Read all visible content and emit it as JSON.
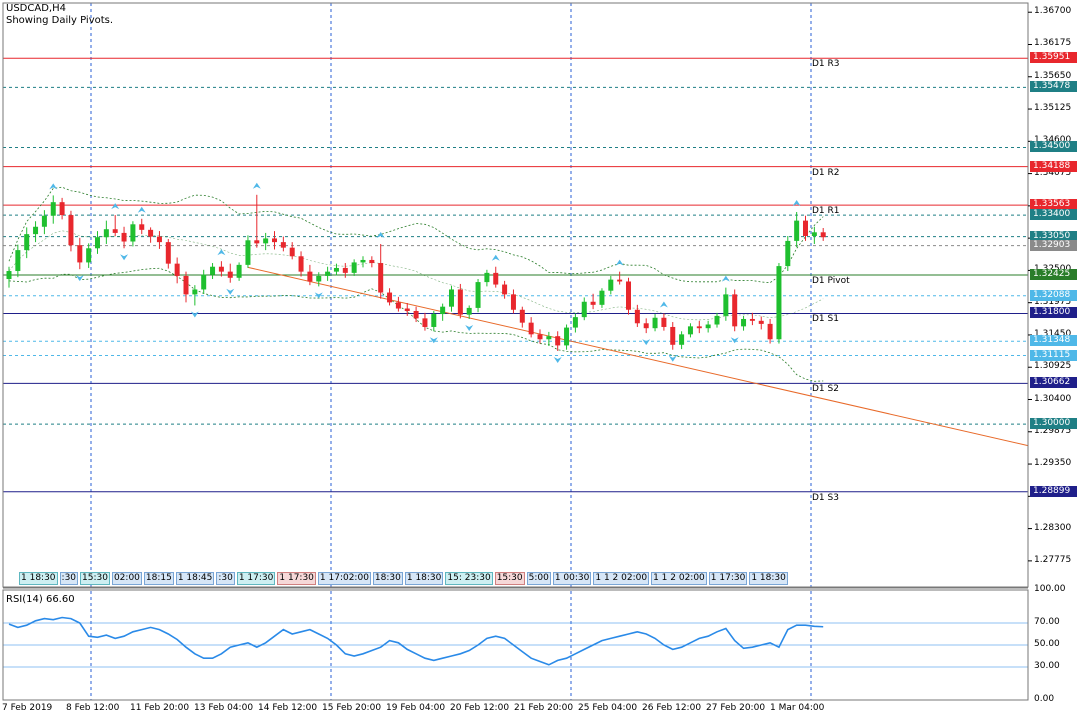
{
  "header": {
    "symbol": "USDCAD,H4",
    "subtitle": "Showing Daily Pivots."
  },
  "colors": {
    "bull": "#1fbf2f",
    "bear": "#e8272d",
    "pivot_red": "#e8272d",
    "pivot_blue": "#1f1f8a",
    "pivot_green": "#2a7d2a",
    "level_teal": "#1f7f85",
    "band": "#2a7d2a",
    "trend": "#e86a2a",
    "rsi": "#2a8ae8",
    "grid": "#2a5fd6"
  },
  "chart_data": [
    {
      "type": "candlestick",
      "title": "USDCAD,H4",
      "y_range": [
        1.2735,
        1.3685
      ],
      "y_ticks": [
        "1.36700",
        "1.36175",
        "1.35650",
        "1.35125",
        "1.34600",
        "1.34075",
        "1.33550",
        "1.33025",
        "1.32500",
        "1.31975",
        "1.31450",
        "1.30925",
        "1.30400",
        "1.29875",
        "1.29350",
        "1.28825",
        "1.28300",
        "1.27775"
      ],
      "x_labels": [
        "7 Feb 2019",
        "8 Feb 12:00",
        "11 Feb 20:00",
        "13 Feb 04:00",
        "14 Feb 12:00",
        "15 Feb 20:00",
        "19 Feb 04:00",
        "20 Feb 12:00",
        "21 Feb 20:00",
        "25 Feb 04:00",
        "26 Feb 12:00",
        "27 Feb 20:00",
        "1 Mar 04:00"
      ],
      "ohlc": [
        [
          1.3236,
          1.3256,
          1.3222,
          1.3249
        ],
        [
          1.3249,
          1.3292,
          1.3239,
          1.3283
        ],
        [
          1.3283,
          1.332,
          1.327,
          1.3309
        ],
        [
          1.3309,
          1.333,
          1.3296,
          1.3321
        ],
        [
          1.3321,
          1.3348,
          1.3309,
          1.3339
        ],
        [
          1.3339,
          1.3372,
          1.3326,
          1.3361
        ],
        [
          1.3361,
          1.3368,
          1.3333,
          1.334
        ],
        [
          1.334,
          1.3347,
          1.3281,
          1.3291
        ],
        [
          1.3291,
          1.3303,
          1.3252,
          1.3263
        ],
        [
          1.3263,
          1.3294,
          1.3254,
          1.3286
        ],
        [
          1.3286,
          1.3314,
          1.3277,
          1.3304
        ],
        [
          1.3304,
          1.3331,
          1.3293,
          1.3317
        ],
        [
          1.3317,
          1.334,
          1.3306,
          1.3311
        ],
        [
          1.3311,
          1.3321,
          1.3286,
          1.3297
        ],
        [
          1.3297,
          1.333,
          1.3289,
          1.3325
        ],
        [
          1.3325,
          1.3334,
          1.3309,
          1.3316
        ],
        [
          1.3316,
          1.332,
          1.3295,
          1.3305
        ],
        [
          1.3305,
          1.3314,
          1.3285,
          1.3296
        ],
        [
          1.3296,
          1.3301,
          1.3253,
          1.3261
        ],
        [
          1.3261,
          1.3271,
          1.3229,
          1.3241
        ],
        [
          1.3241,
          1.3248,
          1.3198,
          1.3211
        ],
        [
          1.3211,
          1.3226,
          1.3193,
          1.3219
        ],
        [
          1.3219,
          1.3251,
          1.3212,
          1.3243
        ],
        [
          1.3243,
          1.3262,
          1.3236,
          1.3256
        ],
        [
          1.3256,
          1.3265,
          1.324,
          1.3248
        ],
        [
          1.3248,
          1.3261,
          1.323,
          1.3238
        ],
        [
          1.3238,
          1.3263,
          1.3233,
          1.3259
        ],
        [
          1.3259,
          1.3307,
          1.3254,
          1.3299
        ],
        [
          1.3299,
          1.3373,
          1.3287,
          1.3294
        ],
        [
          1.3294,
          1.3311,
          1.3283,
          1.3302
        ],
        [
          1.3302,
          1.3314,
          1.3284,
          1.3296
        ],
        [
          1.3296,
          1.3305,
          1.3281,
          1.3287
        ],
        [
          1.3287,
          1.3296,
          1.3268,
          1.3273
        ],
        [
          1.3273,
          1.3281,
          1.324,
          1.3248
        ],
        [
          1.3248,
          1.3259,
          1.3226,
          1.3232
        ],
        [
          1.3232,
          1.3247,
          1.3224,
          1.3241
        ],
        [
          1.3241,
          1.3256,
          1.3233,
          1.3248
        ],
        [
          1.3248,
          1.3261,
          1.3242,
          1.3254
        ],
        [
          1.3254,
          1.3262,
          1.3238,
          1.3246
        ],
        [
          1.3246,
          1.3268,
          1.3241,
          1.3263
        ],
        [
          1.3263,
          1.3273,
          1.3255,
          1.3267
        ],
        [
          1.3267,
          1.3273,
          1.3255,
          1.3262
        ],
        [
          1.3262,
          1.3293,
          1.3204,
          1.3214
        ],
        [
          1.3214,
          1.3221,
          1.3193,
          1.3198
        ],
        [
          1.3198,
          1.3207,
          1.3183,
          1.3188
        ],
        [
          1.3188,
          1.3197,
          1.3176,
          1.3184
        ],
        [
          1.3184,
          1.3191,
          1.3166,
          1.3172
        ],
        [
          1.3172,
          1.3181,
          1.3152,
          1.3158
        ],
        [
          1.3158,
          1.3184,
          1.3151,
          1.3179
        ],
        [
          1.3179,
          1.3196,
          1.3168,
          1.3191
        ],
        [
          1.3191,
          1.3225,
          1.3183,
          1.3219
        ],
        [
          1.3219,
          1.3228,
          1.3172,
          1.3178
        ],
        [
          1.3178,
          1.3193,
          1.3171,
          1.3189
        ],
        [
          1.3189,
          1.3236,
          1.3182,
          1.3231
        ],
        [
          1.3231,
          1.3251,
          1.3224,
          1.3246
        ],
        [
          1.3246,
          1.3256,
          1.3222,
          1.3227
        ],
        [
          1.3227,
          1.3233,
          1.3204,
          1.3211
        ],
        [
          1.3211,
          1.3219,
          1.318,
          1.3186
        ],
        [
          1.3186,
          1.3191,
          1.3157,
          1.3165
        ],
        [
          1.3165,
          1.3174,
          1.3141,
          1.3146
        ],
        [
          1.3146,
          1.3154,
          1.3131,
          1.3138
        ],
        [
          1.3138,
          1.315,
          1.3127,
          1.3143
        ],
        [
          1.3143,
          1.3151,
          1.3119,
          1.3128
        ],
        [
          1.3128,
          1.3162,
          1.3121,
          1.3157
        ],
        [
          1.3157,
          1.318,
          1.3149,
          1.3174
        ],
        [
          1.3174,
          1.3206,
          1.3169,
          1.3199
        ],
        [
          1.3199,
          1.3212,
          1.3187,
          1.3194
        ],
        [
          1.3194,
          1.3221,
          1.3189,
          1.3217
        ],
        [
          1.3217,
          1.3241,
          1.3211,
          1.3235
        ],
        [
          1.3235,
          1.3248,
          1.3227,
          1.3232
        ],
        [
          1.3232,
          1.3238,
          1.3178,
          1.3186
        ],
        [
          1.3186,
          1.3194,
          1.3158,
          1.3164
        ],
        [
          1.3164,
          1.3172,
          1.3148,
          1.3156
        ],
        [
          1.3156,
          1.3179,
          1.3151,
          1.3173
        ],
        [
          1.3173,
          1.318,
          1.3152,
          1.3158
        ],
        [
          1.3158,
          1.3166,
          1.3121,
          1.3129
        ],
        [
          1.3129,
          1.3151,
          1.3122,
          1.3146
        ],
        [
          1.3146,
          1.3164,
          1.3141,
          1.3159
        ],
        [
          1.3159,
          1.3168,
          1.3148,
          1.3156
        ],
        [
          1.3156,
          1.3168,
          1.3149,
          1.3162
        ],
        [
          1.3162,
          1.3181,
          1.3157,
          1.3176
        ],
        [
          1.3176,
          1.3222,
          1.3168,
          1.3211
        ],
        [
          1.3211,
          1.3219,
          1.3151,
          1.3159
        ],
        [
          1.3159,
          1.3176,
          1.3152,
          1.3171
        ],
        [
          1.3171,
          1.3181,
          1.3161,
          1.3168
        ],
        [
          1.3168,
          1.3175,
          1.3154,
          1.3163
        ],
        [
          1.3163,
          1.3171,
          1.3131,
          1.3138
        ],
        [
          1.3138,
          1.3262,
          1.3131,
          1.3257
        ],
        [
          1.3257,
          1.3306,
          1.3249,
          1.3298
        ],
        [
          1.3298,
          1.3345,
          1.3288,
          1.3331
        ],
        [
          1.3331,
          1.3339,
          1.3298,
          1.3306
        ],
        [
          1.3306,
          1.3321,
          1.3293,
          1.3312
        ],
        [
          1.3312,
          1.3319,
          1.3298,
          1.3304
        ]
      ],
      "pivots": [
        {
          "name": "D1 R3",
          "value": 1.35951,
          "label": "1.35951",
          "style": "red"
        },
        {
          "name": "D1 R2",
          "value": 1.34188,
          "label": "1.34188",
          "style": "red"
        },
        {
          "name": "D1 R1",
          "value": 1.33563,
          "label": "1.33563",
          "style": "red"
        },
        {
          "name": "D1 Pivot",
          "value": 1.32425,
          "label": "1.32425",
          "style": "green"
        },
        {
          "name": "D1 S1",
          "value": 1.318,
          "label": "1.31800",
          "style": "blue"
        },
        {
          "name": "D1 S2",
          "value": 1.30662,
          "label": "1.30662",
          "style": "blue"
        },
        {
          "name": "D1 S3",
          "value": 1.28899,
          "label": "1.28899",
          "style": "blue"
        }
      ],
      "levels": [
        {
          "value": 1.35478,
          "label": "1.35478",
          "fill": "#1f7f85"
        },
        {
          "value": 1.345,
          "label": "1.34500",
          "fill": "#1f7f85"
        },
        {
          "value": 1.334,
          "label": "1.33400",
          "fill": "#1f7f85"
        },
        {
          "value": 1.3305,
          "label": "1.33050",
          "fill": "#1f7f85"
        },
        {
          "value": 1.32903,
          "label": "1.32903",
          "fill": "#8a8a8a"
        },
        {
          "value": 1.32088,
          "label": "1.32088",
          "fill": "#4fb8e8"
        },
        {
          "value": 1.31348,
          "label": "1.31348",
          "fill": "#4fb8e8"
        },
        {
          "value": 1.31115,
          "label": "1.31115",
          "fill": "#4fb8e8"
        },
        {
          "value": 1.3,
          "label": "1.30000",
          "fill": "#1f7f85"
        }
      ]
    },
    {
      "type": "line",
      "title": "RSI(14) 66.60",
      "y_range": [
        0,
        100
      ],
      "y_ticks": [
        "100.00",
        "70.00",
        "50.00",
        "30.00",
        "0.00"
      ],
      "levels": [
        70,
        50,
        30
      ],
      "values": [
        69,
        66,
        68,
        72,
        74,
        73,
        75,
        74,
        70,
        58,
        57,
        59,
        56,
        58,
        62,
        64,
        66,
        64,
        60,
        55,
        48,
        42,
        38,
        38,
        42,
        48,
        50,
        52,
        48,
        52,
        58,
        64,
        60,
        62,
        64,
        60,
        56,
        50,
        42,
        40,
        42,
        45,
        48,
        54,
        52,
        46,
        42,
        38,
        36,
        38,
        40,
        42,
        45,
        50,
        56,
        58,
        56,
        50,
        44,
        38,
        35,
        32,
        36,
        38,
        42,
        46,
        50,
        54,
        56,
        58,
        60,
        62,
        60,
        56,
        50,
        46,
        48,
        52,
        56,
        58,
        62,
        65,
        54,
        47,
        48,
        50,
        52,
        48,
        64,
        68,
        68,
        67,
        66.6
      ]
    }
  ],
  "session_labels": [
    {
      "text": "1 18:30",
      "tone": "cyan"
    },
    {
      "text": ":30",
      "tone": "blue"
    },
    {
      "text": "15:30",
      "tone": "cyan"
    },
    {
      "text": "02:00",
      "tone": "blue"
    },
    {
      "text": "18:15",
      "tone": "blue"
    },
    {
      "text": "1 18:45",
      "tone": "blue"
    },
    {
      "text": ":30",
      "tone": "blue"
    },
    {
      "text": "1 17:30",
      "tone": "cyan"
    },
    {
      "text": "1 17:30",
      "tone": "red"
    },
    {
      "text": "1 17:02:00",
      "tone": "blue"
    },
    {
      "text": "18:30",
      "tone": "blue"
    },
    {
      "text": "1 18:30",
      "tone": "blue"
    },
    {
      "text": "15: 23:30",
      "tone": "cyan"
    },
    {
      "text": "15:30",
      "tone": "red"
    },
    {
      "text": "5:00",
      "tone": "blue"
    },
    {
      "text": "1 00:30",
      "tone": "blue"
    },
    {
      "text": "1 1 2 02:00",
      "tone": "blue"
    },
    {
      "text": "1 1 2 02:00",
      "tone": "blue"
    },
    {
      "text": "1 17:30",
      "tone": "blue"
    },
    {
      "text": "1 18:30",
      "tone": "blue"
    }
  ]
}
